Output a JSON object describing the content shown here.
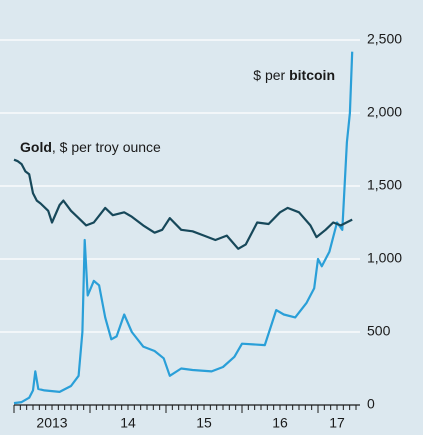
{
  "chart_data": {
    "type": "line",
    "xlim": [
      2013,
      2017.5
    ],
    "xticks": [
      {
        "value": 2013.5,
        "label": "2013"
      },
      {
        "value": 2014.5,
        "label": "14"
      },
      {
        "value": 2015.5,
        "label": "15"
      },
      {
        "value": 2016.5,
        "label": "16"
      },
      {
        "value": 2017.25,
        "label": "17"
      }
    ],
    "ylim": [
      0,
      2500
    ],
    "yticks": [
      0,
      500,
      {
        "value": 1000,
        "label": "1,000"
      },
      {
        "value": 1500,
        "label": "1,500"
      },
      {
        "value": 2000,
        "label": "2,000"
      },
      {
        "value": 2500,
        "label": "2,500"
      }
    ],
    "grid": true,
    "series": [
      {
        "name": "Gold",
        "unit": ", $ per troy ounce",
        "color": "#17485a",
        "x": [
          2013.0,
          2013.05,
          2013.1,
          2013.15,
          2013.2,
          2013.25,
          2013.3,
          2013.35,
          2013.45,
          2013.5,
          2013.6,
          2013.65,
          2013.75,
          2013.85,
          2013.95,
          2014.05,
          2014.2,
          2014.3,
          2014.45,
          2014.55,
          2014.7,
          2014.85,
          2014.95,
          2015.05,
          2015.2,
          2015.35,
          2015.5,
          2015.65,
          2015.8,
          2015.95,
          2016.05,
          2016.2,
          2016.35,
          2016.5,
          2016.6,
          2016.75,
          2016.9,
          2016.98,
          2017.1,
          2017.2,
          2017.3,
          2017.45
        ],
        "values": [
          1680,
          1670,
          1650,
          1600,
          1580,
          1450,
          1400,
          1380,
          1330,
          1250,
          1370,
          1400,
          1330,
          1280,
          1230,
          1250,
          1350,
          1300,
          1320,
          1290,
          1230,
          1180,
          1200,
          1280,
          1200,
          1190,
          1160,
          1130,
          1160,
          1070,
          1100,
          1250,
          1240,
          1320,
          1350,
          1320,
          1230,
          1150,
          1200,
          1250,
          1230,
          1270
        ]
      },
      {
        "name": "bitcoin",
        "unit": "$ per ",
        "color": "#2a9fd8",
        "x": [
          2013.0,
          2013.1,
          2013.2,
          2013.25,
          2013.28,
          2013.32,
          2013.4,
          2013.6,
          2013.75,
          2013.85,
          2013.9,
          2013.93,
          2013.97,
          2014.05,
          2014.12,
          2014.2,
          2014.28,
          2014.35,
          2014.45,
          2014.55,
          2014.7,
          2014.85,
          2014.97,
          2015.05,
          2015.2,
          2015.35,
          2015.6,
          2015.75,
          2015.9,
          2016.0,
          2016.3,
          2016.45,
          2016.55,
          2016.7,
          2016.85,
          2016.95,
          2017.0,
          2017.05,
          2017.15,
          2017.25,
          2017.32,
          2017.38,
          2017.42,
          2017.45
        ],
        "values": [
          13,
          20,
          50,
          100,
          230,
          110,
          100,
          90,
          130,
          200,
          500,
          1130,
          750,
          850,
          820,
          600,
          450,
          470,
          620,
          500,
          400,
          370,
          320,
          200,
          250,
          240,
          230,
          260,
          330,
          420,
          410,
          650,
          620,
          600,
          700,
          800,
          1000,
          950,
          1050,
          1250,
          1200,
          1800,
          2000,
          2420
        ]
      }
    ]
  }
}
